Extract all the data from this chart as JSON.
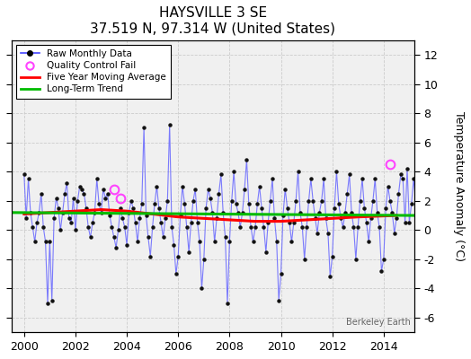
{
  "title": "HAYSVILLE 3 SE",
  "subtitle": "37.519 N, 97.314 W (United States)",
  "ylabel": "Temperature Anomaly (°C)",
  "watermark": "Berkeley Earth",
  "xlim": [
    1999.5,
    2015.2
  ],
  "ylim": [
    -7,
    13
  ],
  "yticks": [
    -6,
    -4,
    -2,
    0,
    2,
    4,
    6,
    8,
    10,
    12
  ],
  "xticks": [
    2000,
    2002,
    2004,
    2006,
    2008,
    2010,
    2012,
    2014
  ],
  "bg_color": "#ffffff",
  "plot_bg_color": "#f0f0f0",
  "raw_color": "#4444ff",
  "raw_line_color": "#6666ff",
  "moving_avg_color": "#ff0000",
  "trend_color": "#00bb00",
  "qc_fail_color": "#ff44ff",
  "raw_monthly": [
    3.8,
    0.8,
    3.5,
    1.2,
    0.2,
    -0.8,
    0.5,
    1.2,
    2.5,
    0.2,
    -0.8,
    -5.0,
    -0.8,
    -4.8,
    0.8,
    2.2,
    1.5,
    0.0,
    1.2,
    2.5,
    3.2,
    0.8,
    0.5,
    2.2,
    0.0,
    2.0,
    3.0,
    2.8,
    2.5,
    1.5,
    0.2,
    -0.5,
    0.5,
    1.2,
    3.5,
    1.8,
    1.2,
    2.8,
    2.2,
    2.5,
    1.0,
    0.2,
    -0.5,
    -1.2,
    0.0,
    1.5,
    0.8,
    0.2,
    -1.0,
    1.2,
    2.0,
    1.5,
    0.5,
    -0.8,
    0.8,
    1.8,
    7.0,
    1.0,
    -0.5,
    -1.8,
    0.2,
    1.8,
    3.0,
    1.5,
    0.5,
    -0.5,
    0.8,
    2.0,
    7.2,
    0.2,
    -1.0,
    -3.0,
    -1.8,
    1.0,
    3.0,
    1.8,
    0.2,
    -1.5,
    0.5,
    2.0,
    2.8,
    0.5,
    -0.8,
    -4.0,
    -2.0,
    1.5,
    2.8,
    2.2,
    1.2,
    -0.8,
    0.8,
    2.5,
    3.8,
    1.2,
    -0.5,
    -5.0,
    -0.8,
    2.0,
    4.0,
    1.8,
    1.2,
    0.2,
    1.2,
    2.8,
    4.8,
    1.8,
    0.2,
    -0.8,
    0.2,
    1.8,
    3.0,
    1.5,
    0.2,
    -1.5,
    0.5,
    2.0,
    3.5,
    0.8,
    -0.8,
    -4.8,
    -3.0,
    1.0,
    2.8,
    1.5,
    0.5,
    -0.8,
    0.5,
    2.0,
    4.0,
    1.2,
    0.2,
    -2.0,
    0.2,
    2.0,
    3.5,
    2.0,
    0.8,
    -0.2,
    1.2,
    2.0,
    3.5,
    0.8,
    -0.2,
    -3.2,
    -1.8,
    1.5,
    4.0,
    1.8,
    0.8,
    0.2,
    1.2,
    2.5,
    3.8,
    1.2,
    0.2,
    -2.0,
    0.2,
    2.0,
    3.5,
    1.5,
    0.5,
    -0.8,
    0.8,
    2.0,
    3.5,
    1.2,
    0.2,
    -2.8,
    -2.0,
    1.5,
    3.0,
    2.0,
    1.2,
    -0.2,
    0.8,
    2.5,
    3.8,
    3.5,
    0.5,
    4.2,
    0.5,
    1.8,
    3.5,
    2.0,
    4.5
  ],
  "qc_fail_times": [
    2003.5,
    2003.75,
    2014.25
  ],
  "qc_fail_values": [
    2.8,
    2.2,
    4.5
  ],
  "moving_avg_x": [
    2000.0,
    2001.0,
    2002.0,
    2003.0,
    2004.0,
    2005.0,
    2006.0,
    2007.0,
    2008.0,
    2009.0,
    2010.0,
    2011.0,
    2012.0,
    2013.0,
    2014.5
  ],
  "moving_avg_y": [
    1.1,
    1.2,
    1.3,
    1.4,
    1.3,
    1.1,
    0.9,
    0.8,
    0.7,
    0.6,
    0.6,
    0.7,
    0.8,
    0.9,
    1.0
  ],
  "trend_x": [
    1999.5,
    2015.2
  ],
  "trend_y": [
    1.2,
    1.0
  ],
  "figsize": [
    5.24,
    4.0
  ],
  "dpi": 100
}
